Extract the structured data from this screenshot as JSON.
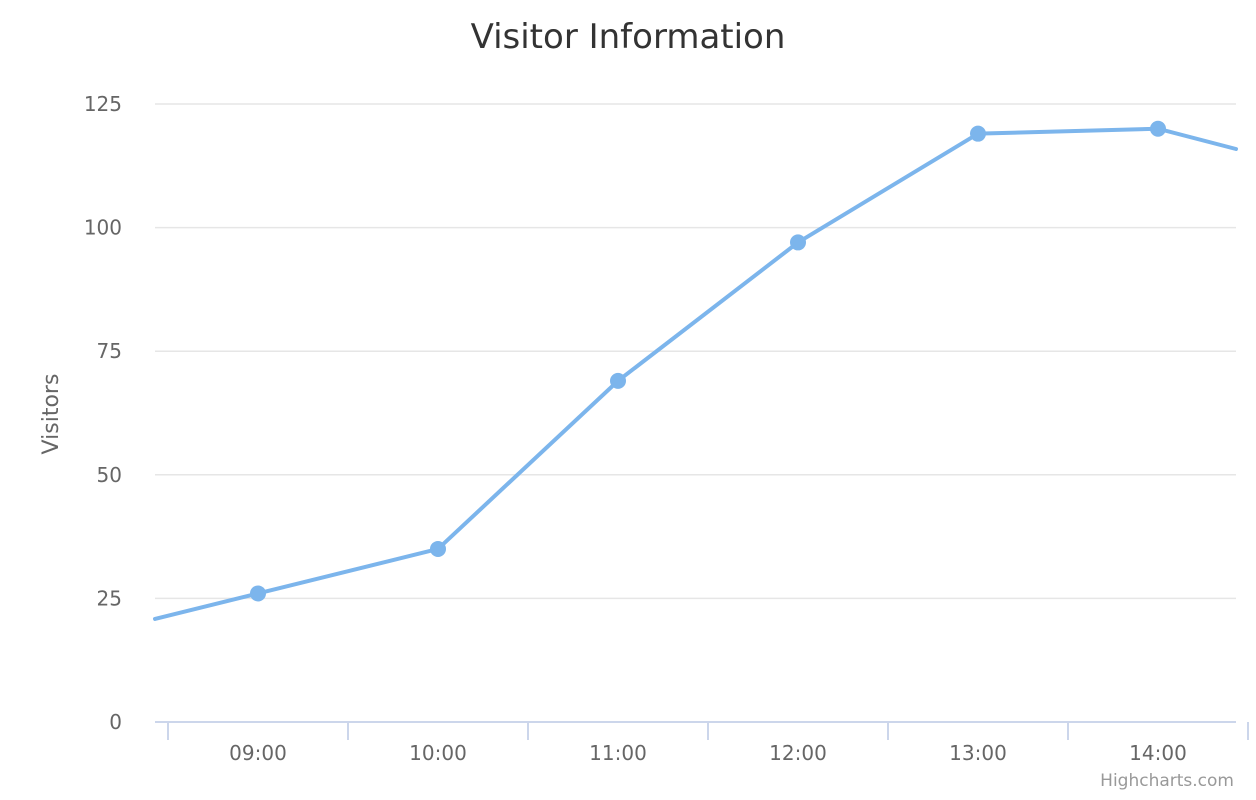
{
  "chart_data": {
    "type": "line",
    "title": "Visitor Information",
    "ylabel": "Visitors",
    "xlabel": "",
    "categories": [
      "09:00",
      "10:00",
      "11:00",
      "12:00",
      "13:00",
      "14:00"
    ],
    "ylim": [
      0,
      125
    ],
    "yticks": [
      0,
      25,
      50,
      75,
      100,
      125
    ],
    "series": [
      {
        "values": [
          26,
          35,
          69,
          97,
          119,
          120
        ],
        "color": "#7cb5ec"
      }
    ],
    "grid": true,
    "legend": "none",
    "credit": "Highcharts.com"
  },
  "colors": {
    "series": "#7cb5ec",
    "grid": "#e6e6e6",
    "axis": "#ccd6eb",
    "title": "#333333",
    "label": "#666666",
    "credit": "#999999"
  }
}
